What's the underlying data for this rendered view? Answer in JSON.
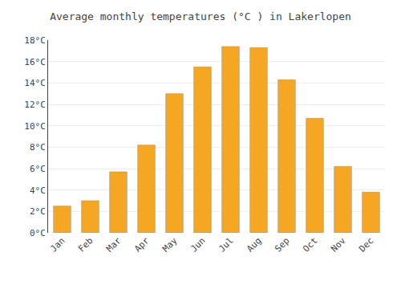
{
  "chart_data": {
    "type": "bar",
    "title": "Average monthly temperatures (°C ) in Lakerlopen",
    "categories": [
      "Jan",
      "Feb",
      "Mar",
      "Apr",
      "May",
      "Jun",
      "Jul",
      "Aug",
      "Sep",
      "Oct",
      "Nov",
      "Dec"
    ],
    "values": [
      2.5,
      3.0,
      5.7,
      8.2,
      13.0,
      15.5,
      17.4,
      17.3,
      14.3,
      10.7,
      6.2,
      3.8
    ],
    "color": "#F5A623",
    "ylim": [
      0,
      18
    ],
    "yticks": [
      {
        "value": 0,
        "label": "0°C"
      },
      {
        "value": 2,
        "label": "2°C"
      },
      {
        "value": 4,
        "label": "4°C"
      },
      {
        "value": 6,
        "label": "6°C"
      },
      {
        "value": 8,
        "label": "8°C"
      },
      {
        "value": 10,
        "label": "10°C"
      },
      {
        "value": 12,
        "label": "12°C"
      },
      {
        "value": 14,
        "label": "14°C"
      },
      {
        "value": 16,
        "label": "16°C"
      },
      {
        "value": 18,
        "label": "18°C"
      }
    ],
    "grid": true
  }
}
